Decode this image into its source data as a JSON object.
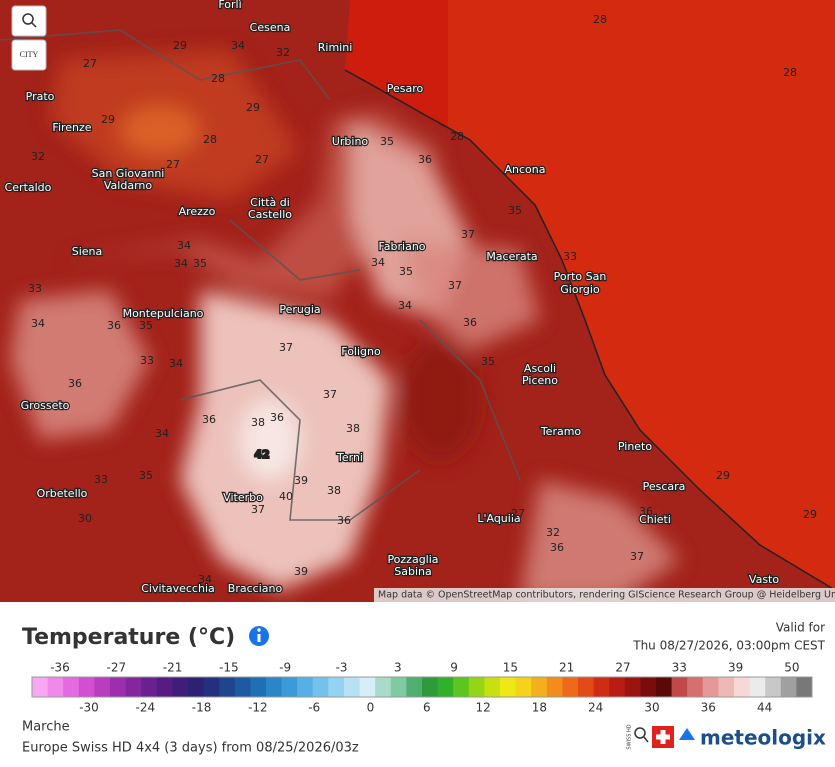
{
  "ui": {
    "city_button": "CITY"
  },
  "map": {
    "cities": [
      "Forlì",
      "Cesena",
      "Rimini",
      "Pesaro",
      "Prato",
      "Firenze",
      "Urbino",
      "Ancona",
      "Certaldo",
      "San Giovanni",
      "Valdarno",
      "Arezzo",
      "Città di",
      "Castello",
      "Fabriano",
      "Macerata",
      "Porto San",
      "Giorgio",
      "Siena",
      "Montepulciano",
      "Perugia",
      "Foligno",
      "Ascoli",
      "Piceno",
      "Grosseto",
      "Teramo",
      "Pineto",
      "Terni",
      "Orbetello",
      "Viterbo",
      "Pescara",
      "L'Aquila",
      "Chieti",
      "Pozzaglia",
      "Sabina",
      "Civitavecchia",
      "Bracciano",
      "Vasto",
      "Prato"
    ],
    "isotherm_labels": [
      27,
      29,
      34,
      32,
      28,
      29,
      28,
      27,
      27,
      29,
      32,
      28,
      28,
      28,
      35,
      36,
      37,
      37,
      36,
      34,
      35,
      34,
      33,
      34,
      36,
      35,
      33,
      34,
      36,
      37,
      37,
      36,
      38,
      36,
      38,
      42,
      39,
      38,
      40,
      37,
      36,
      39,
      34,
      33,
      35,
      30,
      35,
      34,
      34,
      35,
      35,
      33,
      27,
      32,
      36,
      37,
      36,
      29,
      29,
      34
    ],
    "attribution": "Map data © OpenStreetMap contributors, rendering GIScience Research Group @ Heidelberg University"
  },
  "legend": {
    "title": "Temperature (°C)",
    "valid_for": "Valid for",
    "valid_time": "Thu 08/27/2026, 03:00pm CEST",
    "top_ticks": [
      -36,
      -27,
      -21,
      -15,
      -9,
      -3,
      3,
      9,
      15,
      21,
      27,
      33,
      39,
      50
    ],
    "bottom_ticks": [
      -30,
      -24,
      -18,
      -12,
      -6,
      0,
      6,
      12,
      18,
      24,
      30,
      36,
      44
    ]
  },
  "footer": {
    "region": "Marche",
    "model": "Europe Swiss HD 4x4 (3 days) from 08/25/2026/03z",
    "swiss_label": "SWISS HD",
    "brand": "meteologix"
  }
}
